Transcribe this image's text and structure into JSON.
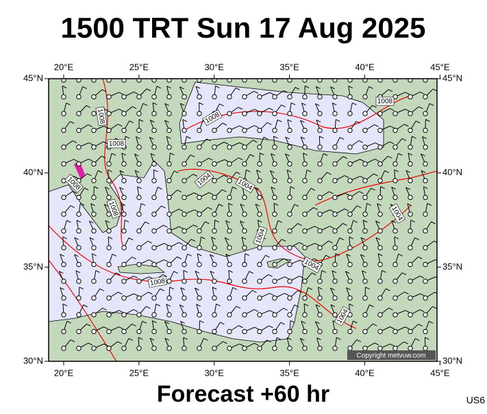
{
  "header": {
    "title": "1500 TRT Sun 17 Aug 2025"
  },
  "map": {
    "lon_ticks": [
      {
        "value": 20,
        "label": "20°E"
      },
      {
        "value": 25,
        "label": "25°E"
      },
      {
        "value": 30,
        "label": "30°E"
      },
      {
        "value": 35,
        "label": "35°E"
      },
      {
        "value": 40,
        "label": "40°E"
      },
      {
        "value": 45,
        "label": "45°E"
      }
    ],
    "lat_ticks": [
      {
        "value": 45,
        "label": "45°N"
      },
      {
        "value": 40,
        "label": "40°N"
      },
      {
        "value": 35,
        "label": "35°N"
      },
      {
        "value": 30,
        "label": "30°N"
      }
    ],
    "contour_labels": [
      "1008",
      "1008",
      "1008",
      "1008",
      "1008",
      "1008",
      "1004",
      "1004",
      "1004",
      "1004",
      "1004",
      "1008",
      "1004"
    ],
    "copyright": "Copyright metvuw.com"
  },
  "footer": {
    "forecast": "Forecast +60 hr",
    "code": "US6"
  }
}
